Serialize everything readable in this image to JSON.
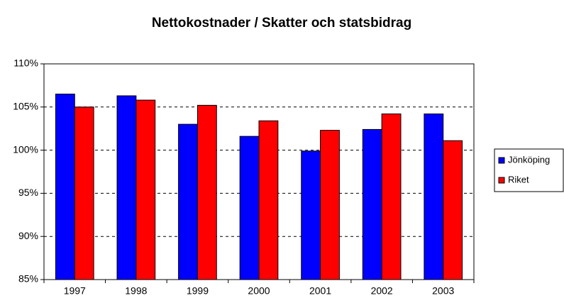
{
  "chart_data": {
    "type": "bar",
    "title": "Nettokostnader / Skatter och statsbidrag",
    "categories": [
      "1997",
      "1998",
      "1999",
      "2000",
      "2001",
      "2002",
      "2003"
    ],
    "series": [
      {
        "name": "Jönköping",
        "color": "#0000ff",
        "values": [
          106.5,
          106.3,
          103.0,
          101.6,
          99.9,
          102.4,
          104.2
        ]
      },
      {
        "name": "Riket",
        "color": "#ff0000",
        "values": [
          105.0,
          105.8,
          105.2,
          103.4,
          102.3,
          104.2,
          101.1
        ]
      }
    ],
    "ylim": [
      85,
      110
    ],
    "yticks": [
      {
        "value": 85,
        "label": "85%"
      },
      {
        "value": 90,
        "label": "90%"
      },
      {
        "value": 95,
        "label": "95%"
      },
      {
        "value": 100,
        "label": "100%"
      },
      {
        "value": 105,
        "label": "105%"
      },
      {
        "value": 110,
        "label": "110%"
      }
    ],
    "grid": true,
    "legend": "right"
  }
}
